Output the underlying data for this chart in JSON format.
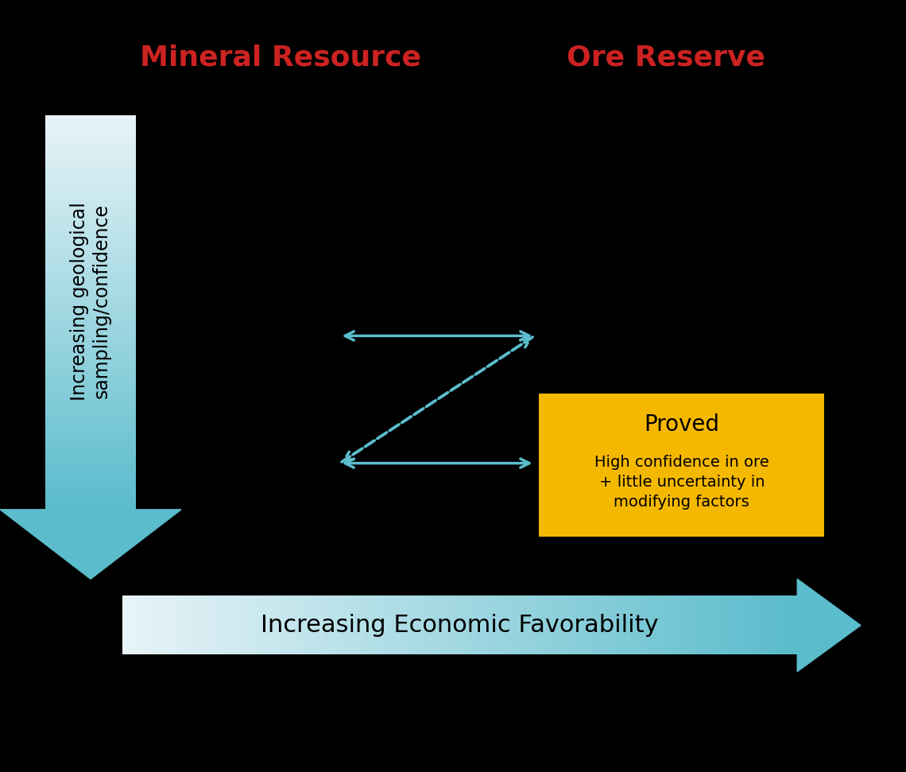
{
  "bg_color": "#000000",
  "title_mineral": "Mineral Resource",
  "title_ore": "Ore Reserve",
  "title_color": "#cc2222",
  "title_fontsize": 26,
  "arrow_color": "#5bbccc",
  "vertical_arrow_label": "Increasing geological\nsampling/confidence",
  "horizontal_arrow_label": "Increasing Economic Favorability",
  "proved_title": "Proved",
  "proved_subtitle": "High confidence in ore\n+ little uncertainty in\nmodifying factors",
  "proved_bg": "#f5b800",
  "proved_title_fontsize": 20,
  "proved_subtitle_fontsize": 14,
  "horiz_label_fontsize": 22,
  "vert_label_fontsize": 17,
  "gradient_start": "#e8f4f8",
  "gradient_end": "#5bbccc"
}
